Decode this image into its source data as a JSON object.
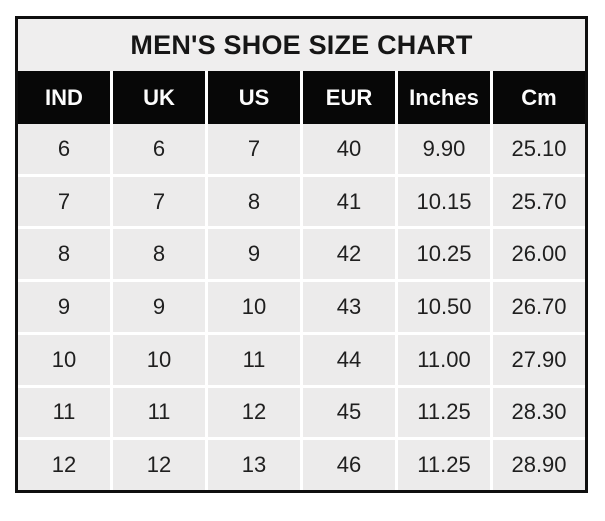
{
  "table": {
    "title": "MEN'S SHOE SIZE CHART",
    "columns": [
      "IND",
      "UK",
      "US",
      "EUR",
      "Inches",
      "Cm"
    ],
    "rows": [
      [
        "6",
        "6",
        "7",
        "40",
        "9.90",
        "25.10"
      ],
      [
        "7",
        "7",
        "8",
        "41",
        "10.15",
        "25.70"
      ],
      [
        "8",
        "8",
        "9",
        "42",
        "10.25",
        "26.00"
      ],
      [
        "9",
        "9",
        "10",
        "43",
        "10.50",
        "26.70"
      ],
      [
        "10",
        "10",
        "11",
        "44",
        "11.00",
        "27.90"
      ],
      [
        "11",
        "11",
        "12",
        "45",
        "11.25",
        "28.30"
      ],
      [
        "12",
        "12",
        "13",
        "46",
        "11.25",
        "28.90"
      ]
    ],
    "colors": {
      "border": "#0f0f0f",
      "title_background": "#efeeee",
      "header_background": "#070707",
      "header_text": "#fcfcfc",
      "cell_background": "#ecebeb",
      "gridline": "#ffffff",
      "text": "#1f1f1f"
    }
  },
  "chart_data": {
    "type": "table",
    "title": "MEN'S SHOE SIZE CHART",
    "columns": [
      "IND",
      "UK",
      "US",
      "EUR",
      "Inches",
      "Cm"
    ],
    "rows": [
      [
        6,
        6,
        7,
        40,
        9.9,
        25.1
      ],
      [
        7,
        7,
        8,
        41,
        10.15,
        25.7
      ],
      [
        8,
        8,
        9,
        42,
        10.25,
        26.0
      ],
      [
        9,
        9,
        10,
        43,
        10.5,
        26.7
      ],
      [
        10,
        10,
        11,
        44,
        11.0,
        27.9
      ],
      [
        11,
        11,
        12,
        45,
        11.25,
        28.3
      ],
      [
        12,
        12,
        13,
        46,
        11.25,
        28.9
      ]
    ]
  }
}
